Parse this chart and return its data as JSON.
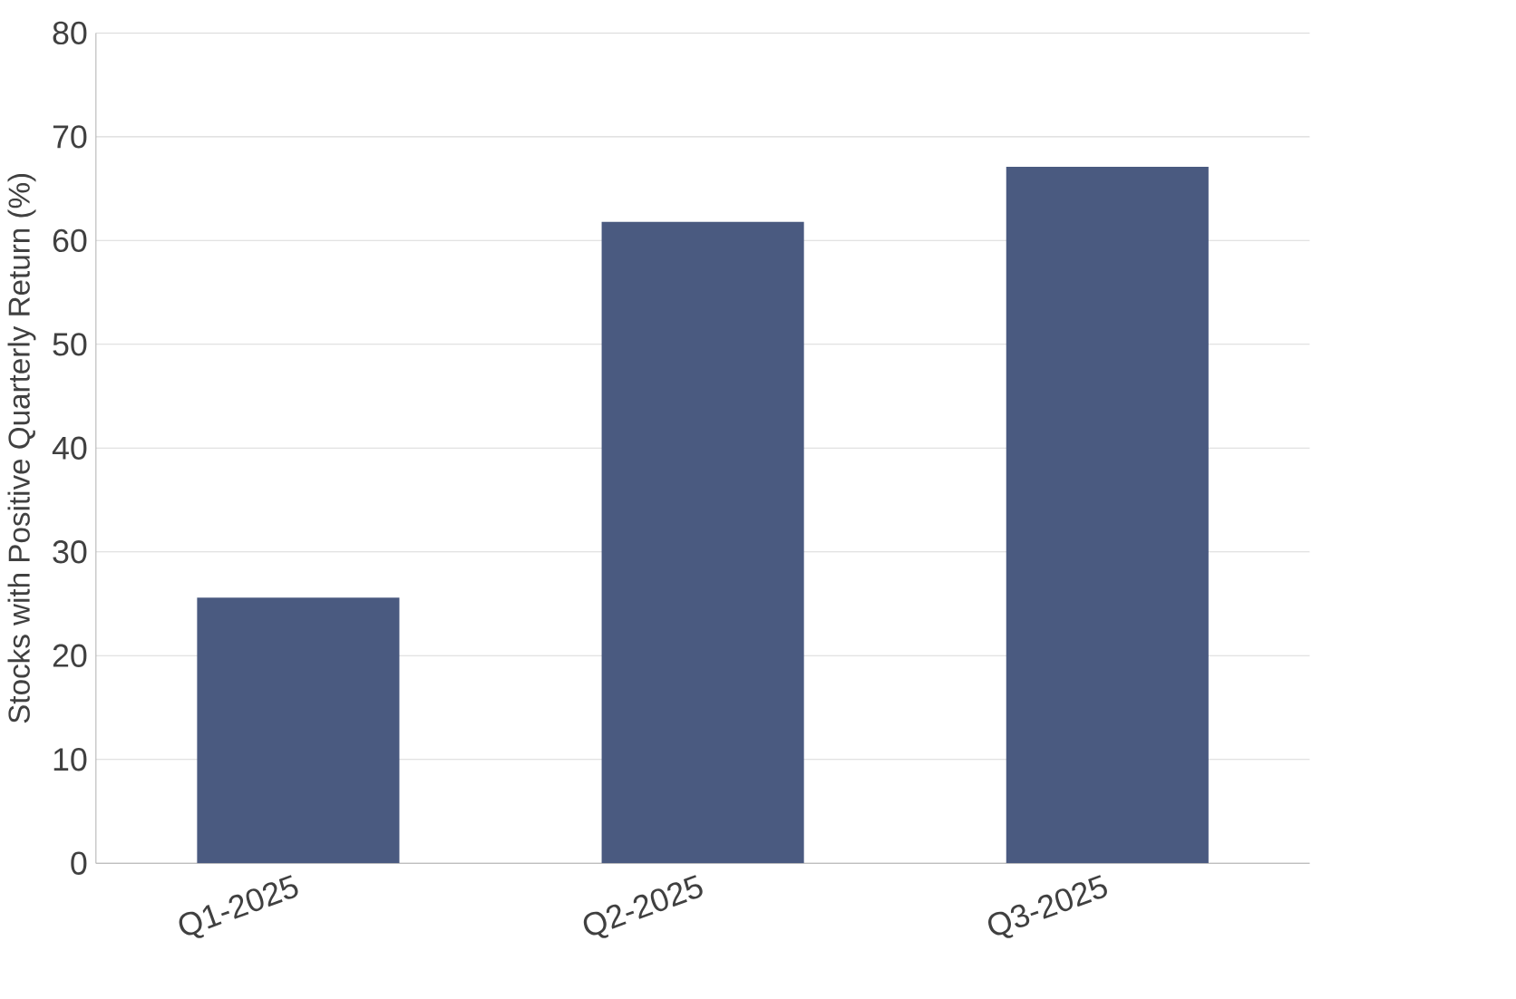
{
  "chart_data": {
    "type": "bar",
    "ylabel": "Stocks with Positive Quarterly Return (%)",
    "categories": [
      "Q1-2025",
      "Q2-2025",
      "Q3-2025"
    ],
    "series": [
      {
        "color": "#4a5a80",
        "values": [
          25.6,
          61.8,
          67.1
        ]
      }
    ],
    "ylim": [
      0,
      80
    ],
    "yticks": [
      0,
      10,
      20,
      30,
      40,
      50,
      60,
      70,
      80
    ],
    "grid": "y"
  }
}
